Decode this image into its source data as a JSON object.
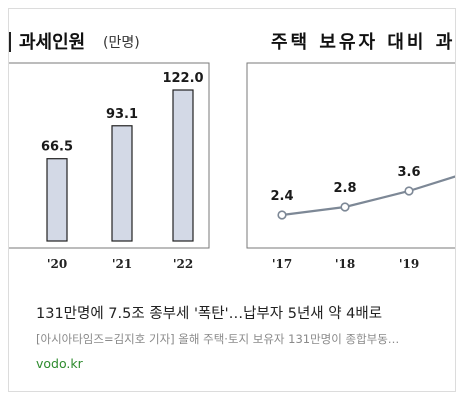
{
  "article": {
    "headline": "131만명에 7.5조 종부세 '폭탄'…납부자 5년새 약 4배로",
    "snippet": "[아시아타임즈=김지호 기자] 올해 주택·토지 보유자 131만명이 종합부동…",
    "source": "vodo.kr"
  },
  "thumbnail": {
    "left_panel": {
      "title": "과세인원",
      "unit": "(만명)"
    },
    "right_panel": {
      "title": "주택 보유자 대비 과"
    }
  },
  "chart_data": [
    {
      "type": "bar",
      "title": "과세인원",
      "unit": "(만명)",
      "categories": [
        "'20",
        "'21",
        "'22"
      ],
      "values": [
        66.5,
        93.1,
        122.0
      ],
      "value_labels": [
        "66.5",
        "93.1",
        "122.0"
      ],
      "ylim": [
        0,
        122.0
      ],
      "bar_color": "#d3d9e6"
    },
    {
      "type": "line",
      "title": "주택 보유자 대비 과",
      "categories": [
        "'17",
        "'18",
        "'19"
      ],
      "values": [
        2.4,
        2.8,
        3.6
      ],
      "value_labels": [
        "2.4",
        "2.8",
        "3.6"
      ],
      "line_color": "#7d8896"
    }
  ]
}
